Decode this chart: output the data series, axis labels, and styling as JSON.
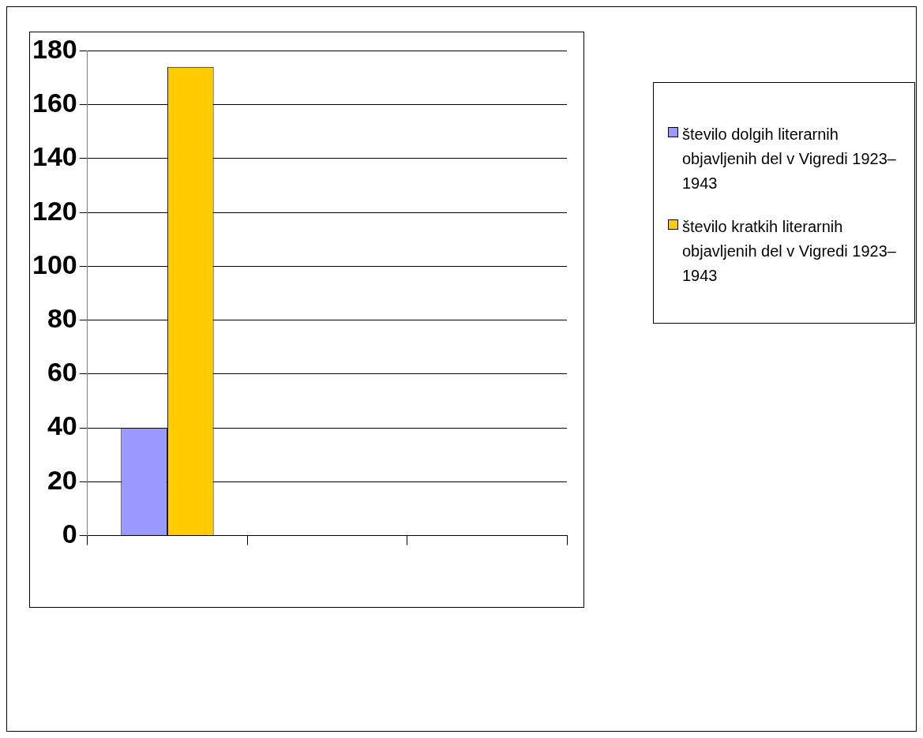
{
  "chart_data": {
    "type": "bar",
    "categories": [
      null,
      null,
      null
    ],
    "series": [
      {
        "name": "število dolgih literarnih objavljenih del v Vigredi 1923–1943",
        "color": "#9999ff",
        "values": [
          40,
          null,
          null
        ]
      },
      {
        "name": "število kratkih literarnih objavljenih del v Vigredi 1923–1943",
        "color": "#ffcc00",
        "values": [
          174,
          null,
          null
        ]
      }
    ],
    "ylim": [
      0,
      180
    ],
    "yticks": [
      0,
      20,
      40,
      60,
      80,
      100,
      120,
      140,
      160,
      180
    ],
    "grid": "y",
    "legend": "right"
  }
}
